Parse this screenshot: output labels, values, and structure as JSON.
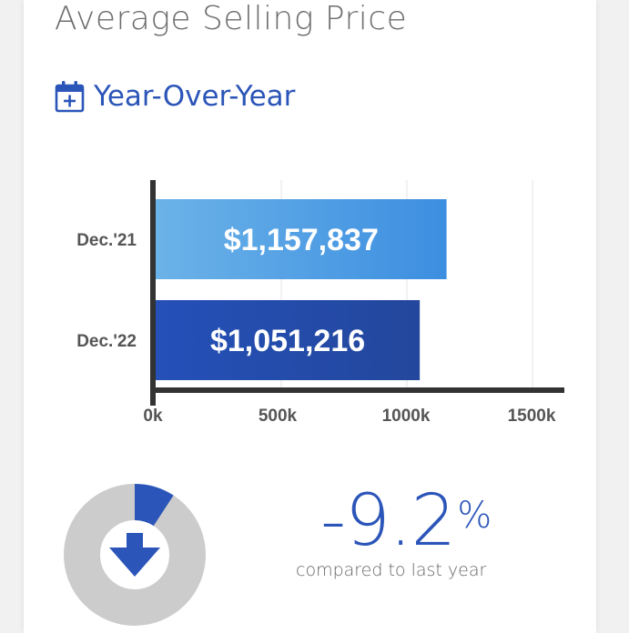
{
  "header": {
    "title": "Average Selling Price",
    "subtitle": "Year-Over-Year",
    "subtitle_icon": "calendar-plus-icon"
  },
  "chart_data": {
    "type": "bar",
    "orientation": "horizontal",
    "categories": [
      "Dec.'21",
      "Dec.'22"
    ],
    "values": [
      1157837,
      1051216
    ],
    "value_labels": [
      "$1,157,837",
      "$1,051,216"
    ],
    "xlim": [
      0,
      1600000
    ],
    "x_ticks": [
      0,
      500000,
      1000000,
      1500000
    ],
    "x_tick_labels": [
      "0k",
      "500k",
      "1000k",
      "1500k"
    ],
    "grid": true,
    "bar_colors": [
      [
        "#6bb2e8",
        "#3c8ee0"
      ],
      [
        "#2450b8",
        "#23479c"
      ]
    ]
  },
  "change": {
    "value": "-9.2",
    "unit": "%",
    "caption": "compared to last year",
    "direction_icon": "arrow-down-icon",
    "donut_fraction": 0.092,
    "accent_color": "#2b55b8",
    "track_color": "#cccccc"
  }
}
